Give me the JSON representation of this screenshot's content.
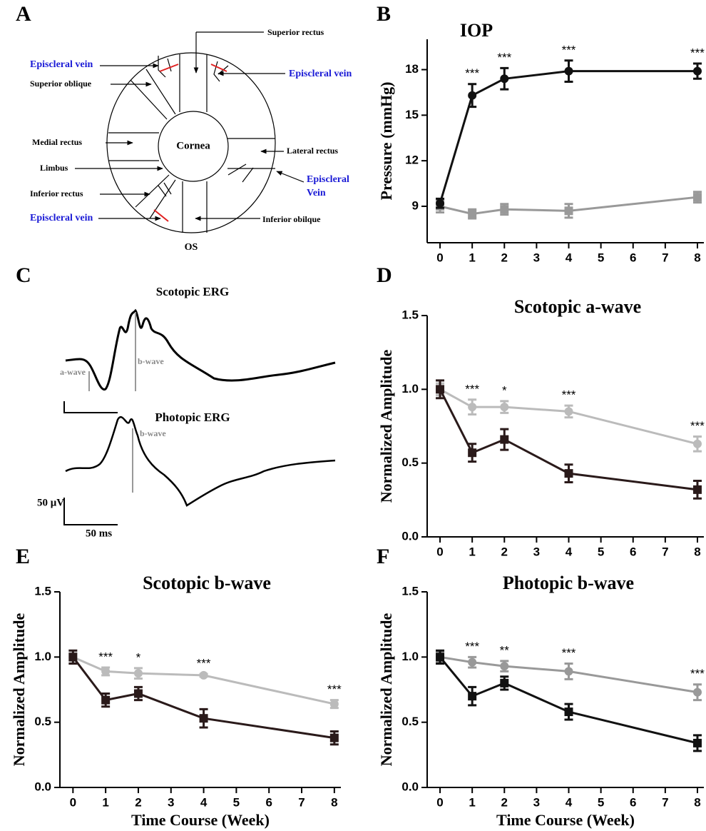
{
  "panel_labels": [
    "A",
    "B",
    "C",
    "D",
    "E",
    "F"
  ],
  "diagram": {
    "cornea": "Cornea",
    "os": "OS",
    "superior_rectus": "Superior rectus",
    "episcleral_vein_1": "Episcleral vein",
    "episcleral_vein_2": "Episcleral vein",
    "superior_oblique": "Superior oblique",
    "medial_rectus": "Medial rectus",
    "lateral_rectus": "Lateral rectus",
    "limbus": "Limbus",
    "episcleral_vein_3": [
      "Episcleral",
      "Vein"
    ],
    "inferior_rectus": "Inferior rectus",
    "episcleral_vein_4": "Episcleral vein",
    "inferior_oblique": "Inferior obilque"
  },
  "erg": {
    "scotopic_title": "Scotopic ERG",
    "a_wave": "a-wave",
    "b_wave_scotopic": "b-wave",
    "photopic_title": "Photopic ERG",
    "b_wave_photopic": "b-wave",
    "scale_amplitude": "50 μV",
    "scale_time": "50 ms"
  },
  "chart_data": [
    {
      "type": "line",
      "title": "IOP",
      "ylabel": "Pressure (mmHg)",
      "x": [
        0,
        1,
        2,
        4,
        8
      ],
      "xlim": [
        -0.4,
        8.2
      ],
      "xticks": [
        0,
        1,
        2,
        3,
        4,
        5,
        6,
        7,
        8
      ],
      "ylim": [
        6.6,
        20
      ],
      "yticks": [
        9,
        12,
        15,
        18
      ],
      "series": [
        {
          "color": "#999999",
          "marker": "square",
          "values": [
            9.0,
            8.5,
            8.8,
            8.7,
            9.6
          ],
          "errors": [
            0.4,
            0.3,
            0.35,
            0.45,
            0.35
          ]
        },
        {
          "color": "#111111",
          "marker": "circle",
          "values": [
            9.2,
            16.3,
            17.4,
            17.9,
            17.9
          ],
          "errors": [
            0.3,
            0.75,
            0.7,
            0.7,
            0.5
          ]
        }
      ],
      "annotations": [
        {
          "x": 1,
          "text": "***"
        },
        {
          "x": 2,
          "text": "***"
        },
        {
          "x": 4,
          "text": "***"
        },
        {
          "x": 8,
          "text": "***"
        }
      ]
    },
    {
      "type": "line",
      "title": "Scotopic a-wave",
      "ylabel": "Normalized Amplitude",
      "x": [
        0,
        1,
        2,
        4,
        8
      ],
      "xlim": [
        -0.4,
        8.2
      ],
      "xticks": [
        0,
        1,
        2,
        3,
        4,
        5,
        6,
        7,
        8
      ],
      "ylim": [
        0,
        1.5
      ],
      "yticks": [
        {
          "value": 0,
          "label": "0.0"
        },
        0.5,
        {
          "value": 1,
          "label": "1.0"
        },
        1.5
      ],
      "series": [
        {
          "color": "#bbbbbb",
          "marker": "circle",
          "values": [
            1.0,
            0.88,
            0.88,
            0.85,
            0.63
          ],
          "errors": [
            0.04,
            0.05,
            0.04,
            0.04,
            0.05
          ]
        },
        {
          "color": "#2a1a1a",
          "marker": "square",
          "values": [
            1.0,
            0.57,
            0.66,
            0.43,
            0.32
          ],
          "errors": [
            0.06,
            0.06,
            0.07,
            0.06,
            0.06
          ]
        }
      ],
      "annotations": [
        {
          "x": 1,
          "text": "***"
        },
        {
          "x": 2,
          "text": "*"
        },
        {
          "x": 4,
          "text": "***"
        },
        {
          "x": 8,
          "text": "***"
        }
      ]
    },
    {
      "type": "line",
      "title": "Scotopic b-wave",
      "ylabel": "Normalized Amplitude",
      "xlabel": "Time Course (Week)",
      "x": [
        0,
        1,
        2,
        4,
        8
      ],
      "xlim": [
        -0.4,
        8.2
      ],
      "xticks": [
        0,
        1,
        2,
        3,
        4,
        5,
        6,
        7,
        8
      ],
      "ylim": [
        0,
        1.5
      ],
      "yticks": [
        {
          "value": 0,
          "label": "0.0"
        },
        0.5,
        {
          "value": 1,
          "label": "1.0"
        },
        1.5
      ],
      "series": [
        {
          "color": "#bbbbbb",
          "marker": "circle",
          "values": [
            1.0,
            0.89,
            0.875,
            0.86,
            0.64
          ],
          "errors": [
            0.03,
            0.03,
            0.04,
            0.01,
            0.03
          ]
        },
        {
          "color": "#2a1a1a",
          "marker": "square",
          "values": [
            1.0,
            0.67,
            0.72,
            0.53,
            0.38
          ],
          "errors": [
            0.05,
            0.05,
            0.05,
            0.07,
            0.05
          ]
        }
      ],
      "annotations": [
        {
          "x": 1,
          "text": "***"
        },
        {
          "x": 2,
          "text": "*"
        },
        {
          "x": 4,
          "text": "***"
        },
        {
          "x": 8,
          "text": "***"
        }
      ]
    },
    {
      "type": "line",
      "title": "Photopic b-wave",
      "ylabel": "Normalized Amplitude",
      "xlabel": "Time Course (Week)",
      "x": [
        0,
        1,
        2,
        4,
        8
      ],
      "xlim": [
        -0.4,
        8.2
      ],
      "xticks": [
        0,
        1,
        2,
        3,
        4,
        5,
        6,
        7,
        8
      ],
      "ylim": [
        0,
        1.5
      ],
      "yticks": [
        {
          "value": 0,
          "label": "0.0"
        },
        0.5,
        {
          "value": 1,
          "label": "1.0"
        },
        1.5
      ],
      "series": [
        {
          "color": "#999999",
          "marker": "circle",
          "values": [
            1.0,
            0.96,
            0.93,
            0.89,
            0.73
          ],
          "errors": [
            0.04,
            0.04,
            0.04,
            0.06,
            0.06
          ]
        },
        {
          "color": "#111111",
          "marker": "square",
          "values": [
            1.0,
            0.7,
            0.8,
            0.58,
            0.34
          ],
          "errors": [
            0.05,
            0.07,
            0.05,
            0.06,
            0.06
          ]
        }
      ],
      "annotations": [
        {
          "x": 1,
          "text": "***"
        },
        {
          "x": 2,
          "text": "**"
        },
        {
          "x": 4,
          "text": "***"
        },
        {
          "x": 8,
          "text": "***"
        }
      ]
    }
  ]
}
